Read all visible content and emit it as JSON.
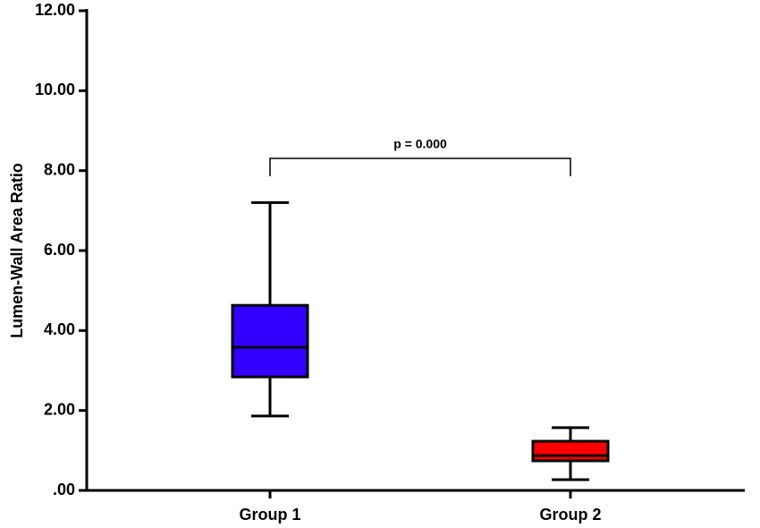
{
  "chart_data": {
    "type": "box",
    "y_label": "Lumen-Wall Area Ratio",
    "categories": [
      "Group 1",
      "Group 2"
    ],
    "boxes": [
      {
        "min": 1.86,
        "q1": 2.84,
        "median": 3.58,
        "q3": 4.63,
        "max": 7.2,
        "color": "#3300ff"
      },
      {
        "min": 0.27,
        "q1": 0.74,
        "median": 0.87,
        "q3": 1.23,
        "max": 1.57,
        "color": "#ff0000"
      }
    ],
    "ylim": [
      0,
      12
    ],
    "yticks": [
      {
        "value": 0,
        "label": ".00"
      },
      {
        "value": 2,
        "label": "2.00"
      },
      {
        "value": 4,
        "label": "4.00"
      },
      {
        "value": 6,
        "label": "6.00"
      },
      {
        "value": 8,
        "label": "8.00"
      },
      {
        "value": 10,
        "label": "10.00"
      },
      {
        "value": 12,
        "label": "12.00"
      }
    ],
    "annotation": "p = 0.000"
  }
}
